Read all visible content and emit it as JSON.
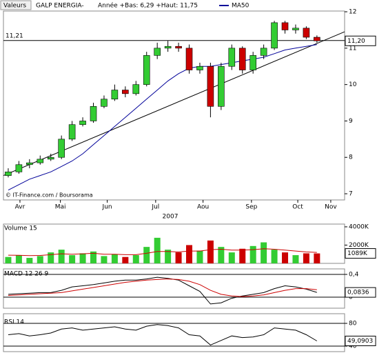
{
  "chart_data": [
    {
      "type": "candlestick",
      "selector": "Valeurs",
      "title": "GALP ENERGIA-",
      "subtitle": "Année +Bas: 6,29 +Haut: 11,75",
      "source": "© IT-Finance.com / Boursorama",
      "xlabel": "2007",
      "x": [
        0,
        1,
        2,
        3,
        4,
        5,
        6,
        7,
        8,
        9,
        10,
        11,
        12,
        13,
        14,
        15,
        16,
        17,
        18,
        19,
        20,
        21,
        22,
        23,
        24,
        25,
        26,
        27,
        28,
        29
      ],
      "open": [
        7.5,
        7.6,
        7.8,
        7.85,
        7.95,
        8.0,
        8.5,
        8.9,
        9.0,
        9.4,
        9.6,
        9.85,
        9.75,
        10.0,
        10.8,
        11.0,
        11.05,
        11.0,
        10.4,
        10.5,
        9.4,
        10.5,
        11.0,
        10.4,
        10.8,
        11.0,
        11.7,
        11.5,
        11.55,
        11.3
      ],
      "high": [
        7.7,
        7.9,
        7.95,
        8.05,
        8.1,
        8.6,
        9.0,
        9.1,
        9.5,
        9.7,
        10.0,
        9.95,
        10.1,
        10.9,
        11.15,
        11.2,
        11.15,
        11.1,
        10.6,
        10.6,
        10.6,
        11.1,
        11.05,
        10.9,
        11.1,
        11.75,
        11.75,
        11.65,
        11.6,
        11.35
      ],
      "low": [
        7.45,
        7.55,
        7.7,
        7.8,
        7.9,
        7.95,
        8.45,
        8.85,
        8.95,
        9.35,
        9.55,
        9.65,
        9.7,
        9.95,
        10.7,
        10.9,
        10.9,
        10.3,
        10.3,
        9.1,
        9.3,
        10.4,
        10.3,
        10.3,
        10.7,
        10.95,
        11.4,
        11.4,
        11.25,
        11.15
      ],
      "close": [
        7.6,
        7.8,
        7.85,
        7.95,
        8.0,
        8.5,
        8.9,
        9.0,
        9.4,
        9.6,
        9.85,
        9.75,
        10.0,
        10.8,
        11.0,
        11.05,
        11.0,
        10.4,
        10.5,
        9.4,
        10.5,
        11.0,
        10.4,
        10.8,
        11.0,
        11.7,
        11.5,
        11.55,
        11.3,
        11.2
      ],
      "up_color": "#33cc33",
      "down_color": "#cc0000",
      "series": [
        {
          "name": "MA50",
          "color": "#000099",
          "values": [
            7.1,
            7.25,
            7.4,
            7.5,
            7.6,
            7.75,
            7.9,
            8.1,
            8.35,
            8.6,
            8.85,
            9.1,
            9.35,
            9.6,
            9.85,
            10.1,
            10.3,
            10.45,
            10.5,
            10.5,
            10.55,
            10.6,
            10.65,
            10.7,
            10.75,
            10.85,
            10.95,
            11.0,
            11.05,
            11.1
          ]
        }
      ],
      "trendline": {
        "x": [
          -0.45,
          31.6
        ],
        "values": [
          7.5,
          11.45
        ],
        "color": "#000000"
      },
      "hline": {
        "value": 11.21,
        "label": "11,21"
      },
      "last": {
        "value": 11.2,
        "label": "11,20"
      },
      "xlim": [
        -0.45,
        31.6
      ],
      "ylim": [
        6.83,
        12.02
      ],
      "yticks": [
        7,
        8,
        9,
        10,
        11,
        12
      ],
      "xticks": [
        {
          "value": 1.1,
          "label": "Avr"
        },
        {
          "value": 4.9,
          "label": "Mai"
        },
        {
          "value": 9.3,
          "label": "Jun"
        },
        {
          "value": 13.85,
          "label": "Jul"
        },
        {
          "value": 18.3,
          "label": "Aou"
        },
        {
          "value": 22.85,
          "label": "Sep"
        },
        {
          "value": 27.2,
          "label": "Oct"
        },
        {
          "value": 30.3,
          "label": "Nov"
        }
      ]
    },
    {
      "type": "bar",
      "title": "Volume 15",
      "values": [
        700,
        900,
        600,
        800,
        1200,
        1500,
        900,
        1100,
        1300,
        800,
        1000,
        700,
        900,
        1800,
        2800,
        1500,
        1200,
        2000,
        1400,
        2500,
        1800,
        1200,
        1600,
        1900,
        2300,
        1500,
        1200,
        900,
        1100,
        1089
      ],
      "ma_values": [
        900,
        880,
        850,
        870,
        950,
        1050,
        1000,
        1050,
        1100,
        1000,
        1000,
        950,
        950,
        1100,
        1300,
        1300,
        1250,
        1350,
        1350,
        1500,
        1550,
        1450,
        1450,
        1500,
        1600,
        1550,
        1450,
        1350,
        1250,
        1200
      ],
      "ma_color": "#cc0000",
      "ylim": [
        0,
        4300
      ],
      "yticks": [
        {
          "value": 4000,
          "label": "4000K"
        },
        {
          "value": 2000,
          "label": "2000K"
        }
      ],
      "last": {
        "value": 1089,
        "label": "1089K"
      }
    },
    {
      "type": "line",
      "title": "MACD 12 26 9",
      "series": [
        {
          "color": "#000000",
          "values": [
            0.05,
            0.06,
            0.07,
            0.08,
            0.08,
            0.12,
            0.18,
            0.2,
            0.22,
            0.25,
            0.28,
            0.3,
            0.3,
            0.32,
            0.35,
            0.33,
            0.3,
            0.2,
            0.1,
            -0.12,
            -0.1,
            -0.02,
            0.02,
            0.05,
            0.08,
            0.15,
            0.2,
            0.18,
            0.14,
            0.0836
          ]
        },
        {
          "color": "#cc0000",
          "values": [
            0.03,
            0.04,
            0.05,
            0.06,
            0.07,
            0.08,
            0.11,
            0.14,
            0.17,
            0.2,
            0.23,
            0.26,
            0.28,
            0.3,
            0.31,
            0.32,
            0.31,
            0.28,
            0.22,
            0.12,
            0.05,
            0.02,
            0.01,
            0.02,
            0.04,
            0.08,
            0.12,
            0.15,
            0.15,
            0.13
          ]
        }
      ],
      "ylim": [
        -0.194,
        0.497
      ],
      "yticks": [
        {
          "value": 0.4,
          "label": "0,4"
        },
        0
      ],
      "grid": true,
      "last": {
        "value": 0.0836,
        "label": "0,0836"
      }
    },
    {
      "type": "line",
      "title": "RSI 14",
      "series": [
        {
          "color": "#000000",
          "values": [
            60,
            62,
            58,
            60,
            63,
            70,
            72,
            68,
            70,
            72,
            74,
            70,
            68,
            75,
            78,
            76,
            72,
            60,
            58,
            42,
            50,
            58,
            55,
            56,
            60,
            72,
            70,
            68,
            60,
            49.0903
          ]
        }
      ],
      "ylim": [
        30.3,
        97
      ],
      "yticks": [
        80,
        40
      ],
      "grid": true,
      "last": {
        "value": 49.0903,
        "label": "49,0903"
      }
    }
  ]
}
